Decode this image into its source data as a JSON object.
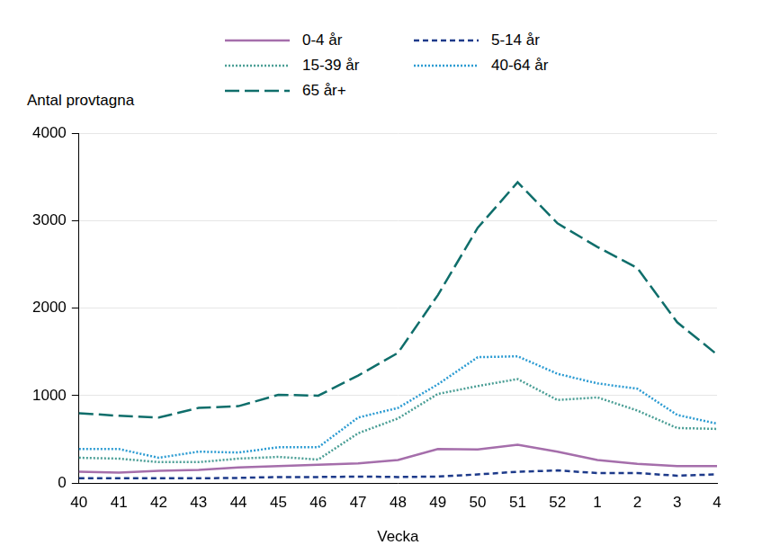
{
  "chart_data": {
    "type": "line",
    "y_label": "Antal provtagna",
    "x_label": "Vecka",
    "categories": [
      "40",
      "41",
      "42",
      "43",
      "44",
      "45",
      "46",
      "47",
      "48",
      "49",
      "50",
      "51",
      "52",
      "1",
      "2",
      "3",
      "4"
    ],
    "series": [
      {
        "name": "0-4 år",
        "color": "#a56eab",
        "line_style": "solid",
        "values": [
          130,
          120,
          140,
          150,
          180,
          195,
          210,
          225,
          265,
          390,
          385,
          440,
          360,
          265,
          220,
          195,
          195
        ]
      },
      {
        "name": "5-14 år",
        "color": "#1d3a8a",
        "line_style": "dashed",
        "values": [
          55,
          55,
          55,
          55,
          60,
          70,
          70,
          75,
          70,
          75,
          100,
          130,
          145,
          115,
          115,
          85,
          100
        ]
      },
      {
        "name": "15-39 år",
        "color": "#4a9e95",
        "line_style": "dotted",
        "values": [
          290,
          280,
          240,
          240,
          280,
          300,
          270,
          570,
          740,
          1020,
          1110,
          1190,
          950,
          980,
          830,
          630,
          620
        ]
      },
      {
        "name": "40-64 år",
        "color": "#2b9bd2",
        "line_style": "dotted",
        "values": [
          390,
          390,
          290,
          360,
          350,
          410,
          410,
          750,
          860,
          1130,
          1440,
          1450,
          1250,
          1140,
          1080,
          780,
          680
        ]
      },
      {
        "name": "65 år+",
        "color": "#0f6e6b",
        "line_style": "longdash",
        "values": [
          800,
          770,
          750,
          860,
          880,
          1010,
          1000,
          1230,
          1490,
          2150,
          2920,
          3440,
          2970,
          2700,
          2460,
          1840,
          1470
        ]
      }
    ],
    "ylim": [
      0,
      4000
    ],
    "yticks": [
      0,
      1000,
      2000,
      3000,
      4000
    ],
    "grid": true,
    "legend": "top"
  }
}
